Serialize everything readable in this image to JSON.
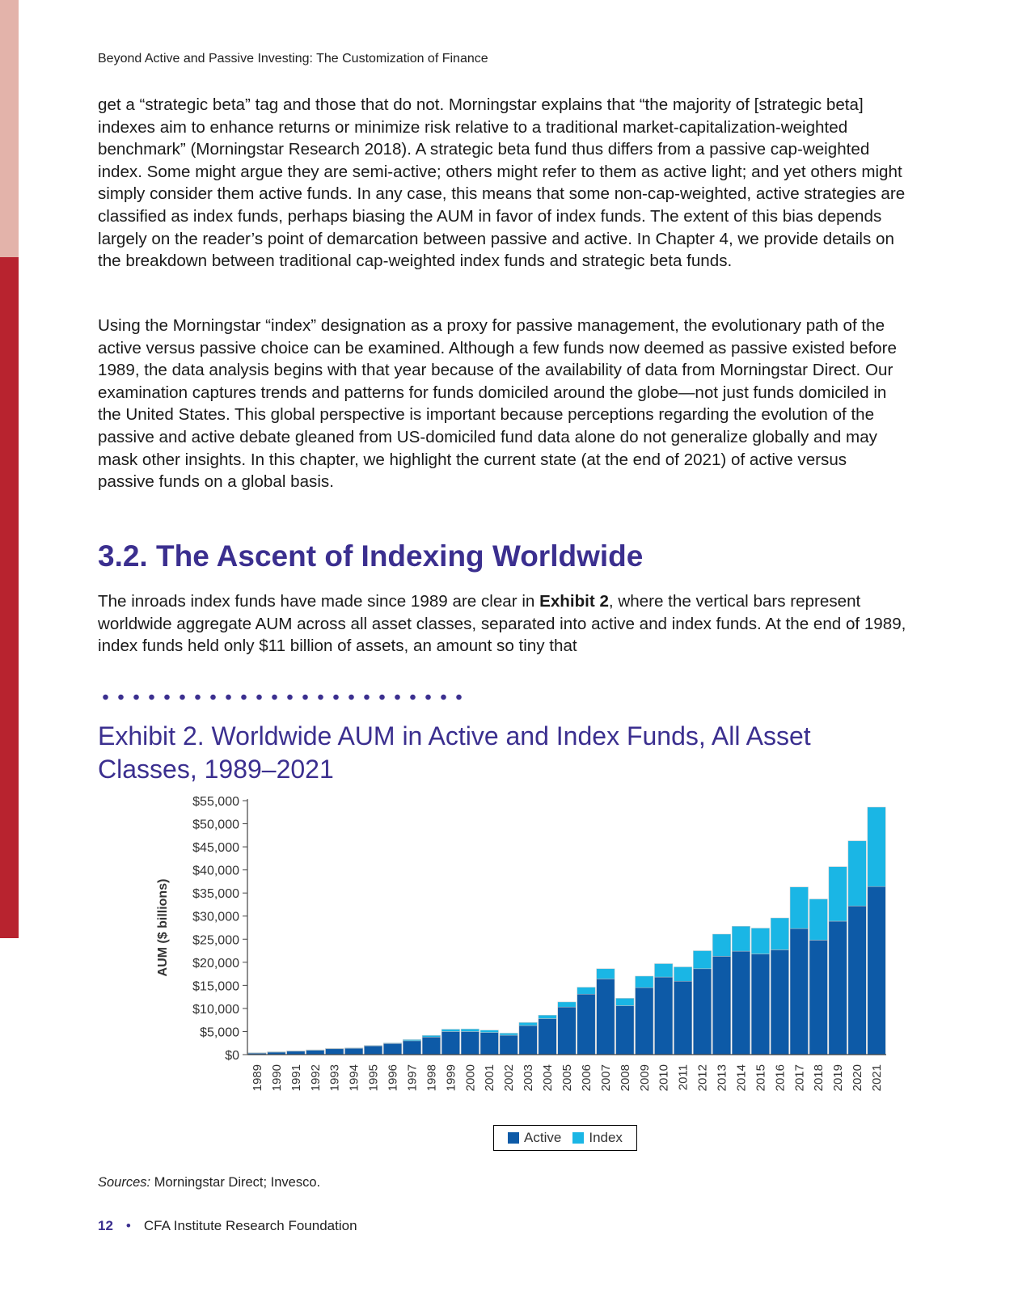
{
  "running_head": "Beyond Active and Passive Investing: The Customization of Finance",
  "paragraphs": [
    "get a “strategic beta” tag and those that do not. Morningstar explains that “the majority of [strategic beta] indexes aim to enhance returns or minimize risk relative to a traditional market-capitalization-weighted benchmark” (Morningstar Research 2018). A strategic beta fund thus differs from a passive cap-weighted index. Some might argue they are semi-active; others might refer to them as active light; and yet others might simply consider them active funds. In any case, this means that some non-cap-weighted, active strategies are classified as index funds, perhaps biasing the AUM in favor of index funds. The extent of this bias depends largely on the reader’s point of demarcation between passive and active. In Chapter 4, we provide details on the breakdown between traditional cap-weighted index funds and strategic beta funds.",
    "Using the Morningstar “index” designation as a proxy for passive management, the evolutionary path of the active versus passive choice can be examined. Although a few funds now deemed as passive existed before 1989, the data analysis begins with that year because of the availability of data from Morningstar Direct. Our examination captures trends and patterns for funds domiciled around the globe—not just funds domiciled in the United States. This global perspective is important because perceptions regarding the evolution of the passive and active debate gleaned from US-domiciled fund data alone do not generalize globally and may mask other insights. In this chapter, we highlight the current state (at the end of 2021) of active versus passive funds on a global basis."
  ],
  "section_heading": "3.2. The Ascent of Indexing Worldwide",
  "para3": {
    "before": "The inroads index funds have made since 1989 are clear in ",
    "bold": "Exhibit 2",
    "after": ", where the vertical bars represent worldwide aggregate AUM across all asset classes, separated into active and index funds. At the end of 1989, index funds held only $11 billion of assets, an amount so tiny that"
  },
  "exhibit_title": "Exhibit 2. Worldwide AUM in Active and Index Funds, All Asset Classes, 1989–2021",
  "chart_data": {
    "type": "bar",
    "stacked": true,
    "title": "Exhibit 2. Worldwide AUM in Active and Index Funds, All Asset Classes, 1989–2021",
    "xlabel": "",
    "ylabel": "AUM ($ billions)",
    "ylim": [
      0,
      55000
    ],
    "yticks": [
      "$0",
      "$5,000",
      "$10,000",
      "$15,000",
      "$20,000",
      "$25,000",
      "$30,000",
      "$35,000",
      "$40,000",
      "$45,000",
      "$50,000",
      "$55,000"
    ],
    "categories": [
      "1989",
      "1990",
      "1991",
      "1992",
      "1993",
      "1994",
      "1995",
      "1996",
      "1997",
      "1998",
      "1999",
      "2000",
      "2001",
      "2002",
      "2003",
      "2004",
      "2005",
      "2006",
      "2007",
      "2008",
      "2009",
      "2010",
      "2011",
      "2012",
      "2013",
      "2014",
      "2015",
      "2016",
      "2017",
      "2018",
      "2019",
      "2020",
      "2021"
    ],
    "series": [
      {
        "name": "Active",
        "color": "#0d5aa7",
        "values": [
          400,
          600,
          800,
          1000,
          1300,
          1400,
          1900,
          2400,
          3000,
          3800,
          5000,
          5000,
          4800,
          4200,
          6300,
          7800,
          10300,
          13100,
          16400,
          10600,
          14500,
          16800,
          15900,
          18600,
          21300,
          22400,
          21800,
          22700,
          27300,
          24800,
          28900,
          32200,
          36400
        ]
      },
      {
        "name": "Index",
        "color": "#1ab6e5",
        "values": [
          11,
          20,
          30,
          40,
          60,
          70,
          100,
          130,
          250,
          350,
          500,
          550,
          500,
          450,
          650,
          750,
          1100,
          1500,
          2200,
          1600,
          2500,
          2900,
          3100,
          3900,
          4800,
          5400,
          5600,
          6900,
          9000,
          8900,
          11800,
          14100,
          17200
        ]
      }
    ],
    "legend": "bottom-center",
    "grid": false
  },
  "sources_label": "Sources:",
  "sources_text": " Morningstar Direct; Invesco.",
  "footer": {
    "page_number": "12",
    "separator": "•",
    "publisher": "CFA Institute Research Foundation"
  }
}
